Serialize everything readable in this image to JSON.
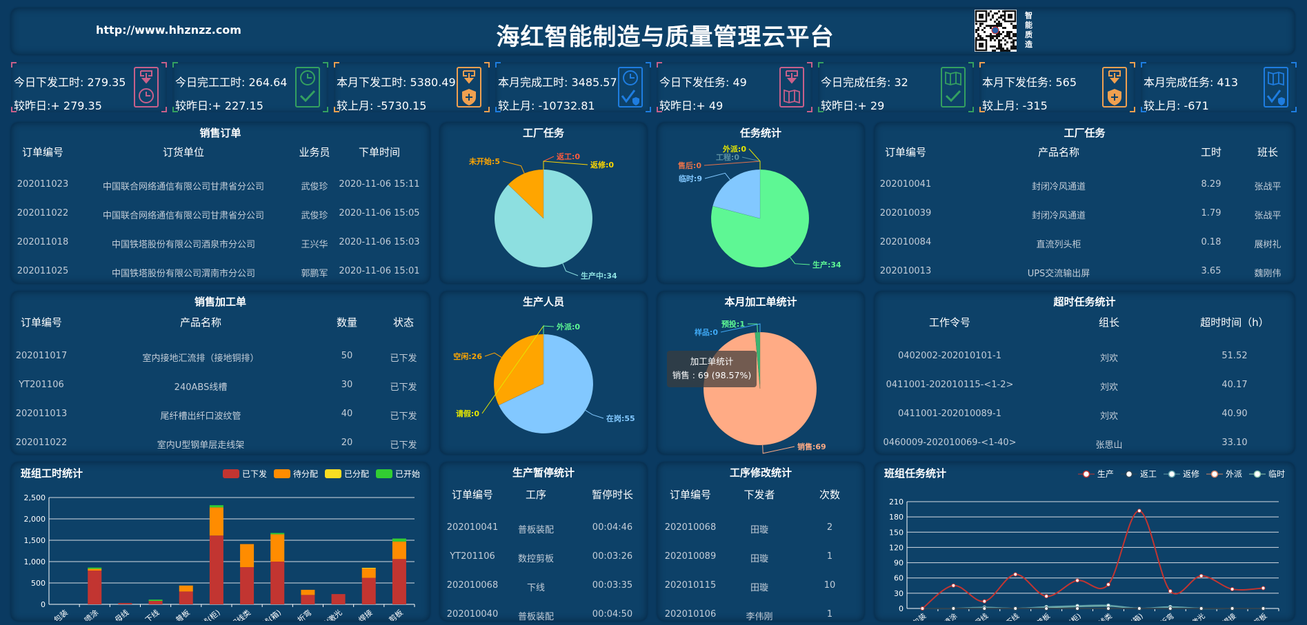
{
  "header": {
    "url": "http://www.hhznzz.com",
    "title": "海红智能制造与质量管理云平台",
    "brand_text": "智能质造"
  },
  "kpis": [
    {
      "line1": "今日下发工时: 279.35",
      "line2": "较昨日:+ 279.35",
      "color": "#c8608a",
      "icon_top": "download",
      "icon_bottom": "clock"
    },
    {
      "line1": "今日完工工时: 264.64",
      "line2": "较昨日:+ 227.15",
      "color": "#34a060",
      "icon_top": "clock",
      "icon_bottom": "check"
    },
    {
      "line1": "本月下发工时: 5380.49",
      "line2": "较上月: -5730.15",
      "color": "#f0a050",
      "icon_top": "download",
      "icon_bottom": "shield-plus"
    },
    {
      "line1": "本月完成工时: 3485.57",
      "line2": "较上月: -10732.81",
      "color": "#1e7de0",
      "icon_top": "clock",
      "icon_bottom": "check-shield"
    },
    {
      "line1": "今日下发任务: 49",
      "line2": "较昨日:+ 49",
      "color": "#c8608a",
      "icon_top": "download",
      "icon_bottom": "book"
    },
    {
      "line1": "今日完成任务: 32",
      "line2": "较昨日:+ 29",
      "color": "#34a060",
      "icon_top": "book",
      "icon_bottom": "check"
    },
    {
      "line1": "本月下发任务: 565",
      "line2": "较上月: -315",
      "color": "#f0a050",
      "icon_top": "download",
      "icon_bottom": "shield-plus"
    },
    {
      "line1": "本月完成任务: 413",
      "line2": "较上月: -671",
      "color": "#1e7de0",
      "icon_top": "book",
      "icon_bottom": "check-shield"
    }
  ],
  "sales_orders": {
    "title": "销售订单",
    "columns": [
      "订单编号",
      "订货单位",
      "业务员",
      "下单时间"
    ],
    "rows": [
      [
        "202011023",
        "中国联合网络通信有限公司甘肃省分公司",
        "武俊珍",
        "2020-11-06 15:11"
      ],
      [
        "202011022",
        "中国联合网络通信有限公司甘肃省分公司",
        "武俊珍",
        "2020-11-06 15:05"
      ],
      [
        "202011018",
        "中国铁塔股份有限公司酒泉市分公司",
        "王兴华",
        "2020-11-06 15:03"
      ],
      [
        "202011025",
        "中国铁塔股份有限公司渭南市分公司",
        "郭鹏军",
        "2020-11-06 15:01"
      ]
    ]
  },
  "factory_tasks": {
    "title": "工厂任务",
    "columns": [
      "订单编号",
      "产品名称",
      "工时",
      "班长"
    ],
    "rows": [
      [
        "202010041",
        "封闭冷风通道",
        "8.29",
        "张战平"
      ],
      [
        "202010039",
        "封闭冷风通道",
        "1.79",
        "张战平"
      ],
      [
        "202010084",
        "直流列头柜",
        "0.18",
        "展树礼"
      ],
      [
        "202010013",
        "UPS交流输出屏",
        "3.65",
        "魏刚伟"
      ]
    ]
  },
  "sales_processing": {
    "title": "销售加工单",
    "columns": [
      "订单编号",
      "产品名称",
      "数量",
      "状态"
    ],
    "rows": [
      [
        "202011017",
        "室内接地汇流排（接地铜排）",
        "50",
        "已下发"
      ],
      [
        "YT201106",
        "240ABS线槽",
        "30",
        "已下发"
      ],
      [
        "202011013",
        "尾纤槽出纤口波纹管",
        "40",
        "已下发"
      ],
      [
        "202011022",
        "室内U型钢单层走线架",
        "20",
        "已下发"
      ]
    ]
  },
  "overtime_tasks": {
    "title": "超时任务统计",
    "columns": [
      "工作令号",
      "组长",
      "超时时间（h）"
    ],
    "rows": [
      [
        "0402002-202010101-1",
        "刘欢",
        "51.52"
      ],
      [
        "0411001-202010115-<1-2>",
        "刘欢",
        "40.17"
      ],
      [
        "0411001-202010089-1",
        "刘欢",
        "40.90"
      ],
      [
        "0460009-202010069-<1-40>",
        "张思山",
        "33.10"
      ]
    ]
  },
  "pause_stats": {
    "title": "生产暂停统计",
    "columns": [
      "订单编号",
      "工序",
      "暂停时长"
    ],
    "rows": [
      [
        "202010041",
        "普板装配",
        "00:04:46"
      ],
      [
        "YT201106",
        "数控剪板",
        "00:03:26"
      ],
      [
        "202010068",
        "下线",
        "00:03:35"
      ],
      [
        "202010040",
        "普板装配",
        "00:04:50"
      ]
    ]
  },
  "process_change_stats": {
    "title": "工序修改统计",
    "columns": [
      "订单编号",
      "下发者",
      "次数"
    ],
    "rows": [
      [
        "202010068",
        "田璇",
        "2"
      ],
      [
        "202010089",
        "田璇",
        "1"
      ],
      [
        "202010115",
        "田璇",
        "10"
      ],
      [
        "202010106",
        "李伟刚",
        "1"
      ]
    ]
  },
  "pies": {
    "factory_task_pie": {
      "title": "工厂任务",
      "slices": [
        {
          "name": "生产中",
          "value": 34,
          "color": "#8ddfe0",
          "label_color": "#8ddfe0"
        },
        {
          "name": "未开始",
          "value": 5,
          "color": "#ffa500",
          "label_color": "#ffa500"
        },
        {
          "name": "返工",
          "value": 0,
          "color": "#ff5a3c",
          "label_color": "#ff5a3c"
        },
        {
          "name": "返修",
          "value": 0,
          "color": "#ffd700",
          "label_color": "#ffd700"
        }
      ]
    },
    "task_stats_pie": {
      "title": "任务统计",
      "slices": [
        {
          "name": "生产",
          "value": 34,
          "color": "#5ef794",
          "label_color": "#5ef794"
        },
        {
          "name": "临时",
          "value": 9,
          "color": "#82c8ff",
          "label_color": "#82c8ff"
        },
        {
          "name": "售后",
          "value": 0,
          "color": "#e8734a",
          "label_color": "#e8734a"
        },
        {
          "name": "工程",
          "value": 0,
          "color": "#5b8fa0",
          "label_color": "#5b8fa0"
        },
        {
          "name": "外派",
          "value": 0,
          "color": "#e5e500",
          "label_color": "#e5e500"
        }
      ]
    },
    "staff_pie": {
      "title": "生产人员",
      "slices": [
        {
          "name": "在岗",
          "value": 55,
          "color": "#82c8ff",
          "label_color": "#82c8ff"
        },
        {
          "name": "空闲",
          "value": 26,
          "color": "#ffa500",
          "label_color": "#ffa500"
        },
        {
          "name": "请假",
          "value": 0,
          "color": "#e6e600",
          "label_color": "#e6e600"
        },
        {
          "name": "外派",
          "value": 0,
          "color": "#5ef794",
          "label_color": "#5ef794"
        }
      ]
    },
    "monthly_order_pie": {
      "title": "本月加工单统计",
      "slices": [
        {
          "name": "销售",
          "value": 69,
          "color": "#ffab85",
          "label_color": "#ffab85"
        },
        {
          "name": "预投",
          "value": 1,
          "color": "#3cb371",
          "label_color": "#5ef794"
        },
        {
          "name": "样品",
          "value": 0,
          "color": "#3fa9f5",
          "label_color": "#3fa9f5"
        }
      ],
      "tooltip": {
        "title": "加工单统计",
        "text": "销售 : 69 (98.57%)"
      }
    }
  },
  "chart_data": [
    {
      "type": "bar",
      "stacked": true,
      "title": "班组工时统计",
      "xlabel": "",
      "ylabel": "",
      "ylim": [
        0,
        2500
      ],
      "yticks": [
        0,
        500,
        1000,
        1500,
        2000,
        2500
      ],
      "grid": true,
      "legend": "top-right",
      "categories": [
        "包装",
        "喷涂",
        "母线",
        "下线",
        "普板",
        "二次线(柜)",
        "配线类",
        "二次线(箱)",
        "折弯",
        "冲压/激光",
        "焊接",
        "剪板"
      ],
      "series": [
        {
          "name": "已下发",
          "color": "#c23531",
          "values": [
            0,
            790,
            30,
            80,
            300,
            1610,
            870,
            1000,
            220,
            240,
            620,
            1060
          ]
        },
        {
          "name": "待分配",
          "color": "#ff8c00",
          "values": [
            0,
            40,
            0,
            0,
            140,
            660,
            540,
            640,
            120,
            0,
            220,
            410
          ]
        },
        {
          "name": "已分配",
          "color": "#f9dd22",
          "values": [
            0,
            0,
            0,
            0,
            0,
            0,
            0,
            0,
            0,
            0,
            15,
            0
          ]
        },
        {
          "name": "已开始",
          "color": "#32cd32",
          "values": [
            0,
            30,
            0,
            30,
            0,
            50,
            0,
            30,
            0,
            0,
            0,
            70
          ]
        }
      ]
    },
    {
      "type": "line",
      "smooth": true,
      "title": "班组任务统计",
      "xlabel": "",
      "ylabel": "",
      "ylim": [
        0,
        210
      ],
      "yticks": [
        0,
        30,
        60,
        90,
        120,
        150,
        180,
        210
      ],
      "grid": true,
      "legend": "top-right",
      "categories": [
        "包装",
        "喷涂",
        "母线",
        "下线",
        "普板",
        "二次线(柜)",
        "配线类",
        "二次线(箱)",
        "折弯",
        "冲压/激光",
        "焊接",
        "剪板"
      ],
      "series": [
        {
          "name": "生产",
          "color": "#c23531",
          "values": [
            0,
            45,
            14,
            67,
            24,
            55,
            47,
            192,
            34,
            64,
            38,
            40
          ]
        },
        {
          "name": "返工",
          "color": "#2f4554",
          "values": [
            0,
            0,
            0,
            0,
            0,
            0,
            0,
            0,
            0,
            0,
            0,
            0
          ]
        },
        {
          "name": "返修",
          "color": "#61a0a8",
          "values": [
            0,
            0,
            2,
            0,
            3,
            5,
            6,
            0,
            3,
            0,
            0,
            0
          ]
        },
        {
          "name": "外派",
          "color": "#d48265",
          "values": [
            0,
            0,
            0,
            0,
            0,
            0,
            0,
            0,
            0,
            0,
            0,
            0
          ]
        },
        {
          "name": "临时",
          "color": "#91c7ae",
          "values": [
            0,
            0,
            1,
            0,
            2,
            4,
            5,
            0,
            2,
            0,
            0,
            0
          ]
        }
      ]
    }
  ]
}
